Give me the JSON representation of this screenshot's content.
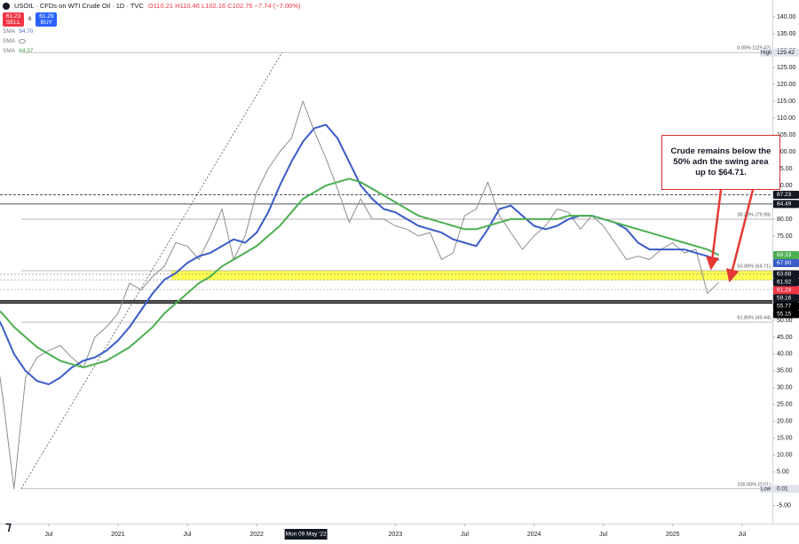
{
  "chart_data": {
    "type": "line",
    "header": {
      "symbol": "USOIL · CFDs on WTI Crude Oil · 1D · TVC",
      "ohlc": "O110.21 H110.46 L102.16 C102.75 −7.74 (−7.00%)",
      "sell": {
        "price": "61.23",
        "label": "SELL"
      },
      "spread": "6",
      "buy": {
        "price": "61.29",
        "label": "BUY"
      },
      "indicators": [
        {
          "name": "SMA",
          "value": "94.70",
          "color": "#4a6fd0"
        },
        {
          "name": "SMA",
          "color": "#9598a1"
        },
        {
          "name": "SMA",
          "value": "64.37",
          "color": "#43a047"
        }
      ]
    },
    "x": [
      "2020-02",
      "2020-03",
      "2020-04",
      "2020-05",
      "2020-06",
      "2020-07",
      "2020-08",
      "2020-09",
      "2020-10",
      "2020-11",
      "2020-12",
      "2021-01",
      "2021-02",
      "2021-03",
      "2021-04",
      "2021-05",
      "2021-06",
      "2021-07",
      "2021-08",
      "2021-09",
      "2021-10",
      "2021-11",
      "2021-12",
      "2022-01",
      "2022-02",
      "2022-03",
      "2022-04",
      "2022-05",
      "2022-06",
      "2022-07",
      "2022-08",
      "2022-09",
      "2022-10",
      "2022-11",
      "2022-12",
      "2023-01",
      "2023-02",
      "2023-03",
      "2023-04",
      "2023-05",
      "2023-06",
      "2023-07",
      "2023-08",
      "2023-09",
      "2023-10",
      "2023-11",
      "2023-12",
      "2024-01",
      "2024-02",
      "2024-03",
      "2024-04",
      "2024-05",
      "2024-06",
      "2024-07",
      "2024-08",
      "2024-09",
      "2024-10",
      "2024-11",
      "2024-12",
      "2025-01",
      "2025-02",
      "2025-03",
      "2025-04",
      "2025-05"
    ],
    "series": [
      {
        "color": "#8d8d8d",
        "width": 1,
        "values": [
          52,
          28,
          0.01,
          33,
          39,
          41,
          42.5,
          39,
          36,
          45,
          48,
          52,
          61,
          59,
          63,
          66,
          73,
          72,
          68,
          75,
          83,
          68,
          75,
          88,
          95,
          100,
          104,
          115,
          106,
          98,
          89,
          79,
          86,
          80,
          80,
          78,
          77,
          75,
          76,
          68,
          70,
          81,
          83,
          91,
          81,
          76,
          71,
          75,
          78,
          83,
          82,
          77,
          81,
          78,
          73,
          68,
          69,
          68,
          71,
          73,
          70,
          71,
          58,
          61.24
        ]
      },
      {
        "color": "#3a5cc8",
        "width": 2,
        "values": [
          55,
          48,
          40,
          35,
          32,
          31,
          33,
          36,
          38,
          39,
          41,
          44,
          48,
          53,
          58,
          62,
          64,
          67,
          69,
          70,
          72,
          74,
          73,
          76,
          82,
          90,
          97,
          103,
          107,
          108,
          104,
          97,
          90,
          86,
          83,
          82,
          80,
          78,
          77,
          76,
          74,
          73,
          72,
          77,
          83,
          84,
          81,
          78,
          77,
          78,
          80,
          81,
          81,
          80,
          79,
          77,
          73,
          71,
          71,
          71,
          71,
          70,
          69,
          67.9
        ]
      },
      {
        "color": "#4caf50",
        "width": 2,
        "values": [
          55,
          52,
          48,
          45,
          42,
          40,
          38,
          37,
          36,
          37,
          38,
          40,
          42,
          45,
          48,
          52,
          55,
          58,
          61,
          63,
          66,
          68,
          70,
          72,
          75,
          78,
          82,
          86,
          88,
          90,
          91,
          92,
          91,
          89,
          87,
          85,
          83,
          81,
          80,
          79,
          78,
          77,
          77,
          78,
          79,
          80,
          80,
          80,
          80,
          80,
          81,
          81,
          81,
          80,
          79,
          78,
          77,
          76,
          75,
          74,
          73,
          72,
          71,
          69.33
        ]
      }
    ],
    "xlim": [
      "2020-02-25",
      "2025-09-20"
    ],
    "xticks": [
      {
        "value": "2020-07",
        "label": "Jul"
      },
      {
        "value": "2021-01",
        "label": "2021"
      },
      {
        "value": "2021-07",
        "label": "Jul"
      },
      {
        "value": "2022-01",
        "label": "2022"
      },
      {
        "value": "2023-01",
        "label": "2023"
      },
      {
        "value": "2023-07",
        "label": "Jul"
      },
      {
        "value": "2024-01",
        "label": "2024"
      },
      {
        "value": "2024-07",
        "label": "Jul"
      },
      {
        "value": "2025-01",
        "label": "2025"
      },
      {
        "value": "2025-07",
        "label": "Jul"
      }
    ],
    "crosshair": {
      "x": "2022-05-09",
      "label": "Mon 09 May '22"
    },
    "ylim": [
      -10.3,
      145
    ],
    "yticks": [
      {
        "value": 140,
        "label": "140.00"
      },
      {
        "value": 135,
        "label": "135.00"
      },
      {
        "value": 130,
        "label": "130.00"
      },
      {
        "value": 125,
        "label": "125.00"
      },
      {
        "value": 120,
        "label": "120.00"
      },
      {
        "value": 115,
        "label": "115.00"
      },
      {
        "value": 110,
        "label": "110.00"
      },
      {
        "value": 105,
        "label": "105.00"
      },
      {
        "value": 100,
        "label": "100.00"
      },
      {
        "value": 95,
        "label": "95.00"
      },
      {
        "value": 90,
        "label": "90.00"
      },
      {
        "value": 80,
        "label": "80.00"
      },
      {
        "value": 75,
        "label": "75.00"
      },
      {
        "value": 50,
        "label": "50.00"
      },
      {
        "value": 45,
        "label": "45.00"
      },
      {
        "value": 40,
        "label": "40.00"
      },
      {
        "value": 35,
        "label": "35.00"
      },
      {
        "value": 30,
        "label": "30.00"
      },
      {
        "value": 25,
        "label": "25.00"
      },
      {
        "value": 20,
        "label": "20.00"
      },
      {
        "value": 15,
        "label": "15.00"
      },
      {
        "value": 10,
        "label": "10.00"
      },
      {
        "value": 5,
        "label": "5.00"
      },
      {
        "value": -5,
        "label": "-5.00"
      }
    ],
    "zone": {
      "from": "2021-05-20",
      "low": 61.92,
      "high": 64.71,
      "color": "#ffff33"
    },
    "trendline": {
      "x": [
        "2020-04-20",
        "2022-03-07"
      ],
      "y": [
        0.01,
        129.42
      ]
    },
    "fib": [
      {
        "value": 129.42,
        "label": "0.00% (129.42)"
      },
      {
        "value": 79.98,
        "label": "38.20% (79.98)"
      },
      {
        "value": 64.71,
        "label": "50.00% (64.71)"
      },
      {
        "value": 49.44,
        "label": "61.80% (49.44)"
      },
      {
        "value": 0.01,
        "label": "100.00% (0.01)"
      }
    ],
    "lines": [
      {
        "value": 87.23,
        "color": "#131722",
        "dash": "3,2",
        "width": 0.8
      },
      {
        "value": 84.49,
        "color": "#131722",
        "dash": "",
        "width": 0.8
      },
      {
        "value": 63.68,
        "color": "#787b86",
        "dash": "2,2",
        "width": 0.6
      },
      {
        "value": 61.92,
        "color": "#787b86",
        "dash": "2,2",
        "width": 0.6
      },
      {
        "value": 59.16,
        "color": "#787b86",
        "dash": "2,2",
        "width": 0.6
      },
      {
        "value": 55.77,
        "color": "#000000",
        "dash": "",
        "width": 1.6
      },
      {
        "value": 55.15,
        "color": "#000000",
        "dash": "",
        "width": 1.6
      }
    ],
    "markers": [
      {
        "value": 129.42,
        "bg": "#e0e3eb",
        "fg": "#131722",
        "tag": "High"
      },
      {
        "value": 87.23,
        "bg": "#131722",
        "fg": "#ffffff"
      },
      {
        "value": 84.49,
        "bg": "#131722",
        "fg": "#ffffff"
      },
      {
        "value": 69.33,
        "bg": "#4caf50",
        "fg": "#ffffff"
      },
      {
        "value": 67.9,
        "label": "67.90",
        "bg": "#3a5cc8",
        "fg": "#ffffff"
      },
      {
        "value": 63.68,
        "bg": "#131722",
        "fg": "#ffffff"
      },
      {
        "value": 61.92,
        "bg": "#131722",
        "fg": "#ffffff"
      },
      {
        "value": 61.24,
        "bg": "#f23645",
        "fg": "#ffffff"
      },
      {
        "value": 59.16,
        "bg": "#131722",
        "fg": "#ffffff"
      },
      {
        "value": 55.77,
        "bg": "#000000",
        "fg": "#ffffff"
      },
      {
        "value": 55.15,
        "bg": "#000000",
        "fg": "#ffffff"
      },
      {
        "value": 0.01,
        "bg": "#e0e3eb",
        "fg": "#131722",
        "tag": "Low"
      }
    ],
    "annotation": "Crude remains below the 50% adn the swing area up to $64.71."
  }
}
